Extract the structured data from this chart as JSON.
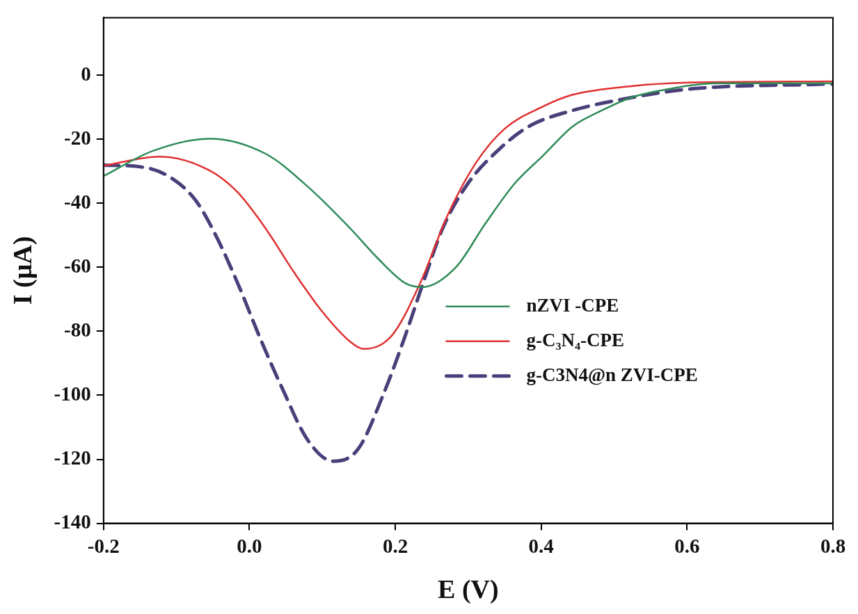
{
  "chart_data": {
    "type": "line",
    "xlabel": "E (V)",
    "ylabel": "I (μA)",
    "xlim": [
      -0.2,
      0.8
    ],
    "xticks": [
      -0.2,
      {
        "value": 0,
        "label": "0.0"
      },
      0.2,
      0.4,
      0.6,
      0.8
    ],
    "ylim": [
      -140,
      18
    ],
    "yticks": [
      0,
      -20,
      -40,
      -60,
      -80,
      -100,
      -120,
      -140
    ],
    "grid": false,
    "legend": "right",
    "marker": "none",
    "series": [
      {
        "name": "nZVI -CPE",
        "color": "#2e8b57",
        "line_style": "solid",
        "x": [
          -0.2,
          -0.132,
          -0.055,
          0.022,
          0.08,
          0.138,
          0.176,
          0.214,
          0.237,
          0.283,
          0.323,
          0.363,
          0.403,
          0.443,
          0.483,
          0.523,
          0.563,
          0.643,
          0.8
        ],
        "values": [
          -31.5,
          -23.6,
          -19.8,
          -24.5,
          -34.8,
          -47.8,
          -57.2,
          -65,
          -66.2,
          -60,
          -46.5,
          -34,
          -25,
          -16,
          -11,
          -7,
          -4.8,
          -2.5,
          -2.5
        ]
      },
      {
        "name": "g-C₃N₄-CPE",
        "color": "#e03030",
        "line_style": "solid",
        "x": [
          -0.2,
          -0.123,
          -0.055,
          -0.016,
          0.022,
          0.061,
          0.099,
          0.138,
          0.157,
          0.195,
          0.234,
          0.272,
          0.311,
          0.35,
          0.403,
          0.443,
          0.523,
          0.603,
          0.8
        ],
        "values": [
          -28.3,
          -25.4,
          -29.7,
          -36.6,
          -47.8,
          -61.5,
          -73.6,
          -83.2,
          -85.5,
          -81.4,
          -65,
          -43.6,
          -27.2,
          -16.7,
          -9.7,
          -6.1,
          -3.4,
          -2.3,
          -1.9
        ]
      },
      {
        "name": "g-C3N4@n ZVI-CPE",
        "color": "#4b3f7a",
        "line_style": "dashed",
        "x": [
          -0.2,
          -0.15,
          -0.112,
          -0.074,
          -0.047,
          -0.016,
          0.015,
          0.045,
          0.08,
          0.115,
          0.149,
          0.184,
          0.215,
          0.238,
          0.265,
          0.299,
          0.343,
          0.383,
          0.443,
          0.523,
          0.603,
          0.8
        ],
        "values": [
          -28.1,
          -28.6,
          -31.4,
          -39,
          -49.6,
          -65,
          -82.3,
          -97.8,
          -114,
          -120.6,
          -116.8,
          -99.5,
          -80.5,
          -65,
          -47.8,
          -34,
          -23,
          -16,
          -11,
          -7,
          -4.3,
          -2.7
        ]
      }
    ]
  }
}
